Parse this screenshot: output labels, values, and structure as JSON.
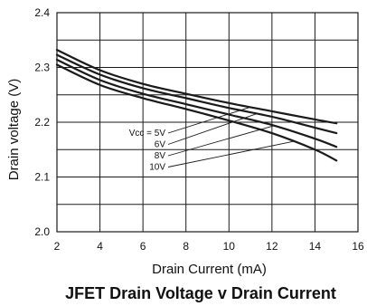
{
  "chart_data": {
    "type": "line",
    "title": "JFET Drain Voltage v Drain Current",
    "xlabel": "Drain Current (mA)",
    "ylabel": "Drain voltage (V)",
    "xlim": [
      2,
      16
    ],
    "ylim": [
      2.0,
      2.4
    ],
    "x_ticks": [
      "2",
      "4",
      "6",
      "8",
      "10",
      "12",
      "14",
      "16"
    ],
    "y_ticks": [
      "2.0",
      "2.1",
      "2.2",
      "2.3",
      "2.4"
    ],
    "grid": true,
    "series": [
      {
        "name": "Vcc = 5V",
        "x": [
          2,
          4,
          6,
          8,
          10,
          12,
          14,
          15
        ],
        "y": [
          2.332,
          2.295,
          2.27,
          2.252,
          2.235,
          2.22,
          2.205,
          2.198
        ]
      },
      {
        "name": "6V",
        "x": [
          2,
          4,
          6,
          8,
          10,
          12,
          14,
          15
        ],
        "y": [
          2.323,
          2.287,
          2.262,
          2.244,
          2.226,
          2.21,
          2.19,
          2.18
        ]
      },
      {
        "name": "8V",
        "x": [
          2,
          4,
          6,
          8,
          10,
          12,
          14,
          15
        ],
        "y": [
          2.314,
          2.277,
          2.252,
          2.233,
          2.214,
          2.195,
          2.17,
          2.155
        ]
      },
      {
        "name": "10V",
        "x": [
          2,
          4,
          6,
          8,
          10,
          12,
          14,
          15
        ],
        "y": [
          2.305,
          2.268,
          2.244,
          2.224,
          2.203,
          2.18,
          2.15,
          2.13
        ]
      }
    ],
    "series_label_anchor_x": [
      11.0,
      11.3,
      12.1,
      13.0
    ]
  },
  "colors": {
    "line": "#1a1a1a",
    "grid": "#1a1a1a",
    "text": "#111111"
  }
}
